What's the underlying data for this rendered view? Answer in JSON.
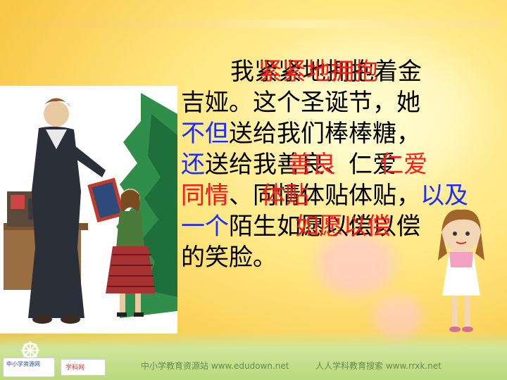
{
  "lines": [
    {
      "segments": [
        {
          "text": "我紧紧地拥抱着金",
          "color": "black"
        }
      ]
    },
    {
      "segments": [
        {
          "text": "吉娅。这个圣诞节，她",
          "color": "black"
        }
      ]
    },
    {
      "segments": [
        {
          "text": "不但",
          "color": "blue"
        },
        {
          "text": "送给我们棒棒糖，",
          "color": "black"
        }
      ]
    },
    {
      "segments": [
        {
          "text": "还",
          "color": "blue"
        },
        {
          "text": "送给我善良、仁爱",
          "color": "black"
        }
      ]
    },
    {
      "segments": [
        {
          "text": "同情、同情体贴体贴，",
          "color": "black"
        },
        {
          "text": "以及",
          "color": "blue"
        }
      ]
    },
    {
      "segments": [
        {
          "text": "一个",
          "color": "blue"
        },
        {
          "text": "陌生如愿以偿以偿",
          "color": "black"
        }
      ]
    },
    {
      "segments": [
        {
          "text": "的笑脸。",
          "color": "black"
        }
      ]
    }
  ],
  "overlays": [
    "紧紧地拥抱",
    "善良",
    "仁爱",
    "同情",
    "体贴",
    "如愿以偿"
  ],
  "footer": {
    "left_logo_text": "中小学资源网",
    "second_logo_text": "学科网",
    "site1": "中小学教育资源站 www.edudown.net",
    "site2": "人人学科教育搜索 www.rrxk.net"
  },
  "colors": {
    "accent_red": "#ff1a1a",
    "accent_blue": "#1a2cff"
  }
}
